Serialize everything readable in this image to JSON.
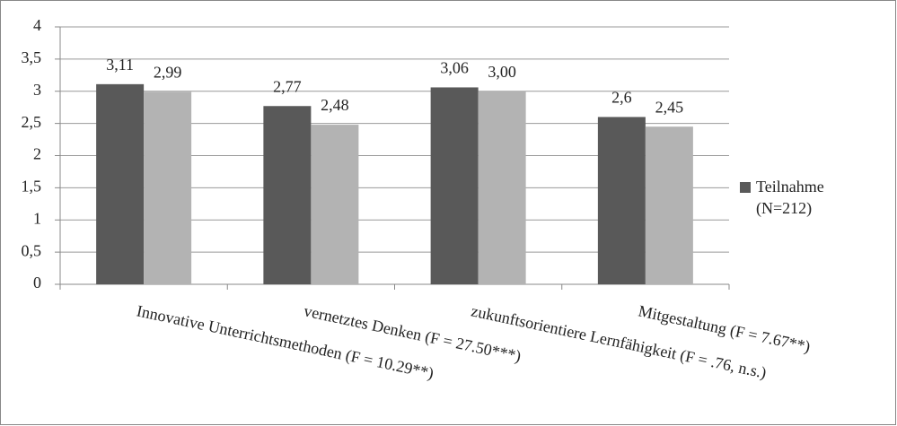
{
  "chart_data": {
    "type": "bar",
    "categories": [
      "Innovative Unterrichtsmethoden (F = 10.29**)",
      "vernetztes Denken (F = 27.50***)",
      "zukunftsorientiere Lernfähigkeit (F = .76, n.s.)",
      "Mitgestaltung (F = 7.67**)"
    ],
    "series": [
      {
        "name": "Teilnahme (N=212)",
        "color": "#595959",
        "values": [
          3.11,
          2.77,
          3.06,
          2.6
        ],
        "value_labels": [
          "3,11",
          "2,77",
          "3,06",
          "2,6"
        ]
      },
      {
        "color": "#b3b3b3",
        "values": [
          2.99,
          2.48,
          3.0,
          2.45
        ],
        "value_labels": [
          "2,99",
          "2,48",
          "3,00",
          "2,45"
        ]
      }
    ],
    "ylim": [
      0,
      4
    ],
    "yticks": [
      0,
      {
        "value": 0.5,
        "label": "0,5"
      },
      1,
      {
        "value": 1.5,
        "label": "1,5"
      },
      2,
      {
        "value": 2.5,
        "label": "2,5"
      },
      3,
      {
        "value": 3.5,
        "label": "3,5"
      },
      4
    ],
    "grid": true,
    "legend": "right"
  }
}
